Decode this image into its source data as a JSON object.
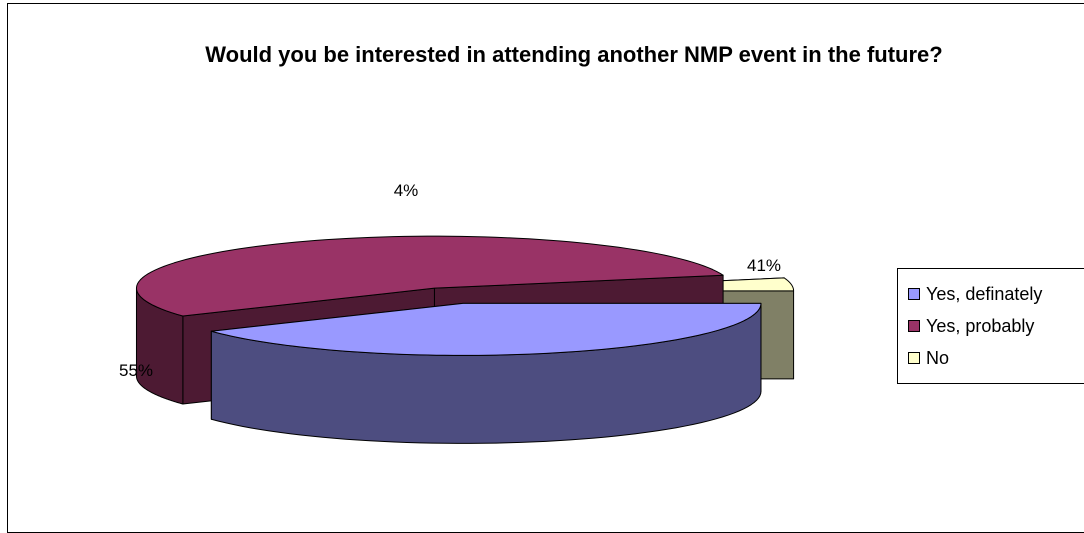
{
  "chart_data": {
    "type": "pie",
    "title": "Would you be interested in attending another NMP event in the future?",
    "categories": [
      "Yes, definately",
      "Yes, probably",
      "No"
    ],
    "values": [
      41,
      55,
      4
    ],
    "labels": [
      "41%",
      "55%",
      "4%"
    ],
    "legend_position": "right",
    "colors": {
      "top": [
        "#9999FF",
        "#993366",
        "#FFFFCC"
      ],
      "side": [
        "#4D4D80",
        "#4D1A33",
        "#808066"
      ]
    }
  }
}
